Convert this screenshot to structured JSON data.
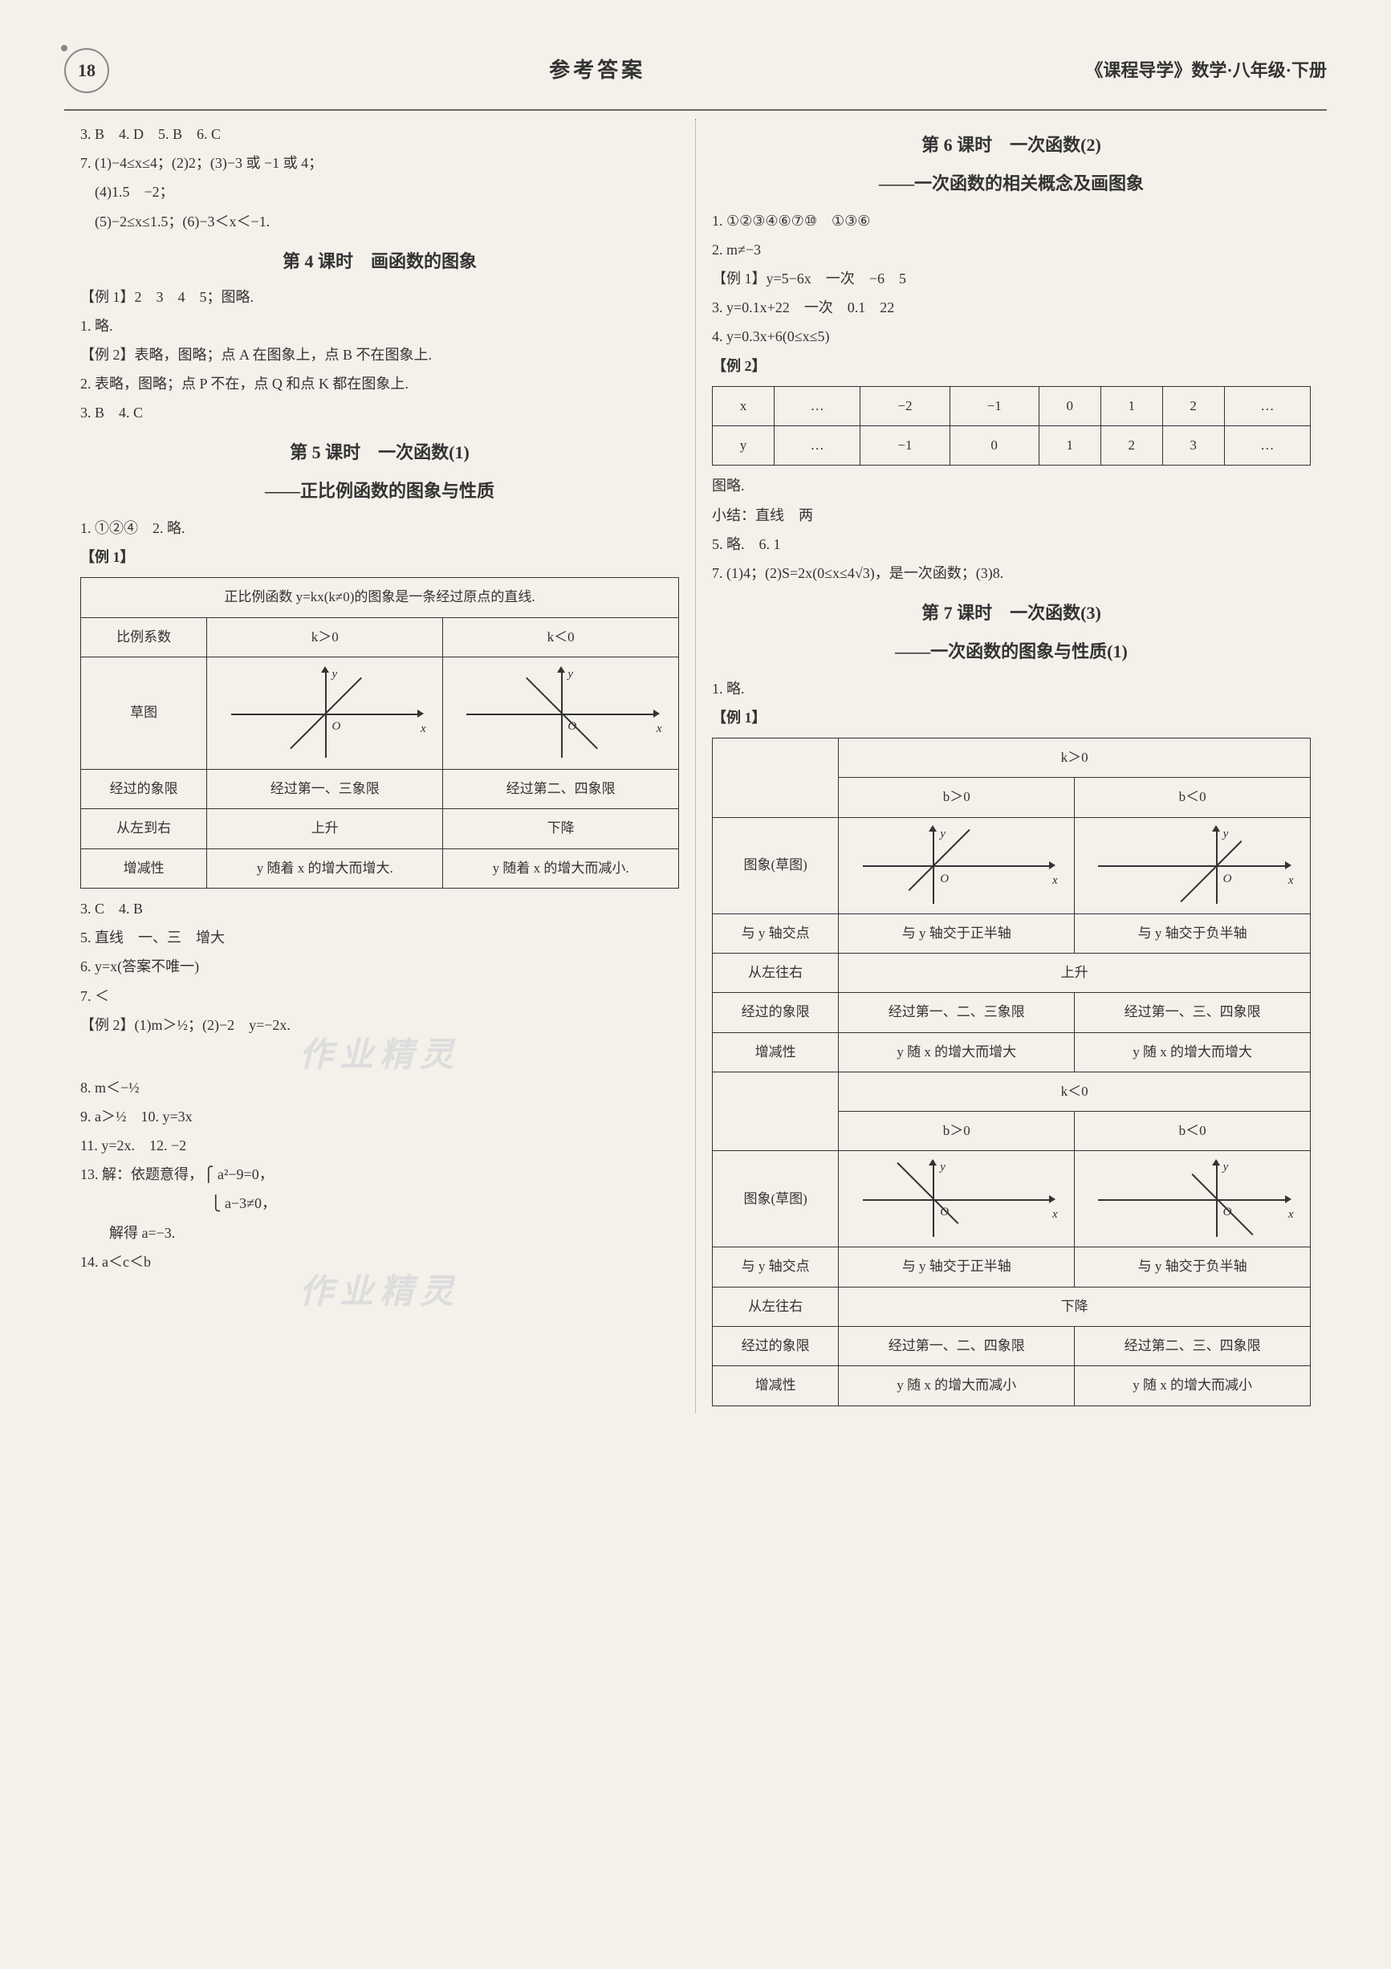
{
  "page_number": "18",
  "header_center": "参考答案",
  "header_right": "《课程导学》数学·八年级·下册",
  "left": {
    "pre_answers": [
      "3. B　4. D　5. B　6. C",
      "7. (1)−4≤x≤4；(2)2；(3)−3 或 −1 或 4；",
      "　(4)1.5　−2；",
      "　(5)−2≤x≤1.5；(6)−3＜x＜−1."
    ],
    "lesson4": {
      "title": "第 4 课时　画函数的图象",
      "lines": [
        "【例 1】2　3　4　5；图略.",
        "1. 略.",
        "【例 2】表略，图略；点 A 在图象上，点 B 不在图象上.",
        "2. 表略，图略；点 P 不在，点 Q 和点 K 都在图象上.",
        "3. B　4. C"
      ]
    },
    "lesson5": {
      "title": "第 5 课时　一次函数(1)",
      "subtitle": "——正比例函数的图象与性质",
      "pre": [
        "1. ①②④　2. 略.",
        "【例 1】"
      ],
      "table_caption": "正比例函数 y=kx(k≠0)的图象是一条经过原点的直线.",
      "row_labels": [
        "比例系数",
        "草图",
        "经过的象限",
        "从左到右",
        "增减性"
      ],
      "col_headers": [
        "k＞0",
        "k＜0"
      ],
      "quadrants": [
        "经过第一、三象限",
        "经过第二、四象限"
      ],
      "direction": [
        "上升",
        "下降"
      ],
      "monotone": [
        "y 随着 x 的增大而增大.",
        "y 随着 x 的增大而减小."
      ],
      "post": [
        "3. C　4. B",
        "5. 直线　一、三　增大",
        "6. y=x(答案不唯一)",
        "7. ＜",
        "【例 2】(1)m＞½；(2)−2　y=−2x.",
        "8. m＜−½",
        "9. a＞½　10. y=3x",
        "11. y=2x.　12. −2",
        "13. 解：依题意得，⎧ a²−9=0，",
        "　　　　　　　　　⎩ a−3≠0，",
        "　　解得 a=−3.",
        "14. a＜c＜b"
      ]
    }
  },
  "right": {
    "lesson6": {
      "title": "第 6 课时　一次函数(2)",
      "subtitle": "——一次函数的相关概念及画图象",
      "lines": [
        "1. ①②③④⑥⑦⑩　①③⑥",
        "2. m≠−3",
        "【例 1】y=5−6x　一次　−6　5",
        "3. y=0.1x+22　一次　0.1　22",
        "4. y=0.3x+6(0≤x≤5)",
        "【例 2】"
      ],
      "xy_table": {
        "rows": [
          [
            "x",
            "…",
            "−2",
            "−1",
            "0",
            "1",
            "2",
            "…"
          ],
          [
            "y",
            "…",
            "−1",
            "0",
            "1",
            "2",
            "3",
            "…"
          ]
        ]
      },
      "post": [
        "图略.",
        "小结：直线　两",
        "5. 略.　6. 1",
        "7. (1)4；(2)S=2x(0≤x≤4√3)，是一次函数；(3)8."
      ]
    },
    "lesson7": {
      "title": "第 7 课时　一次函数(3)",
      "subtitle": "——一次函数的图象与性质(1)",
      "pre": [
        "1. 略.",
        "【例 1】"
      ],
      "k_pos": {
        "header": "k＞0",
        "b_headers": [
          "b＞0",
          "b＜0"
        ],
        "row_labels": [
          "图象(草图)",
          "与 y 轴交点",
          "从左往右",
          "经过的象限",
          "增减性"
        ],
        "intercept": [
          "与 y 轴交于正半轴",
          "与 y 轴交于负半轴"
        ],
        "direction": "上升",
        "quadrants": [
          "经过第一、二、三象限",
          "经过第一、三、四象限"
        ],
        "monotone": [
          "y 随 x 的增大而增大",
          "y 随 x 的增大而增大"
        ]
      },
      "k_neg": {
        "header": "k＜0",
        "b_headers": [
          "b＞0",
          "b＜0"
        ],
        "row_labels": [
          "图象(草图)",
          "与 y 轴交点",
          "从左往右",
          "经过的象限",
          "增减性"
        ],
        "intercept": [
          "与 y 轴交于正半轴",
          "与 y 轴交于负半轴"
        ],
        "direction": "下降",
        "quadrants": [
          "经过第一、二、四象限",
          "经过第二、三、四象限"
        ],
        "monotone": [
          "y 随 x 的增大而减小",
          "y 随 x 的增大而减小"
        ]
      }
    }
  },
  "watermark": "作业精灵",
  "colors": {
    "background": "#f4f0ea",
    "text": "#333333",
    "border": "#333333",
    "divider": "#666666",
    "watermark": "#dddddd"
  }
}
